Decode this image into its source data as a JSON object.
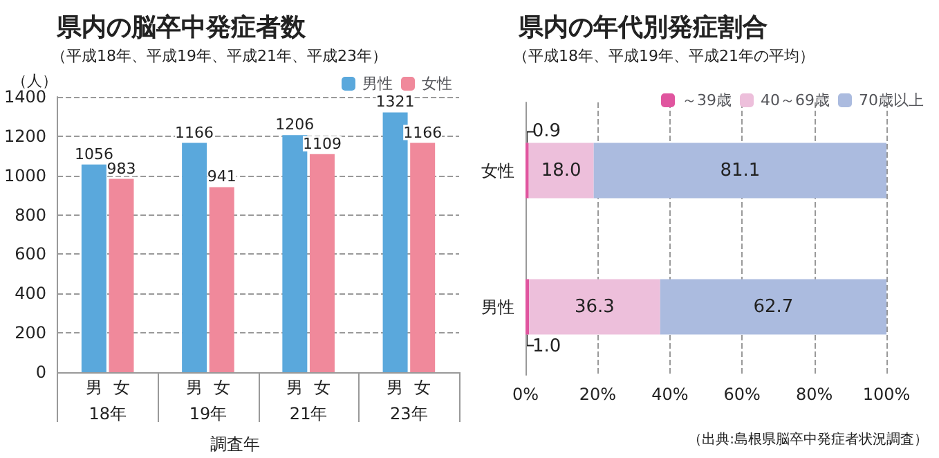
{
  "chart_data": [
    {
      "type": "bar",
      "title": "県内の脳卒中発症者数",
      "subtitle": "（平成18年、平成19年、平成21年、平成23年）",
      "ylabel": "（人）",
      "xlabel": "調査年",
      "categories": [
        "18年",
        "19年",
        "21年",
        "23年"
      ],
      "series": [
        {
          "name": "男性",
          "color": "#5aa8dc",
          "values": [
            1056,
            1166,
            1206,
            1321
          ]
        },
        {
          "name": "女性",
          "color": "#f0899b",
          "values": [
            983,
            941,
            1109,
            1166
          ]
        }
      ],
      "ylim": [
        0,
        1400
      ],
      "yticks": [
        0,
        200,
        400,
        600,
        800,
        1000,
        1200,
        1400
      ],
      "grid": "y",
      "legend": "top right",
      "data_labels": true,
      "annotations": [
        "男",
        "女",
        "男",
        "女",
        "男",
        "女",
        "男",
        "女"
      ]
    },
    {
      "type": "bar",
      "orientation": "horizontal",
      "stacked": true,
      "title": "県内の年代別発症割合",
      "subtitle": "（平成18年、平成19年、平成21年の平均）",
      "categories": [
        "女性",
        "男性"
      ],
      "series": [
        {
          "name": "～39歳",
          "color": "#e0559f",
          "values": [
            0.9,
            1.0
          ],
          "value_labels": [
            "0.9",
            "1.0"
          ]
        },
        {
          "name": "40～69歳",
          "color": "#edbfdb",
          "values": [
            18.0,
            36.3
          ],
          "value_labels": [
            "18.0",
            "36.3"
          ]
        },
        {
          "name": "70歳以上",
          "color": "#abbbdf",
          "values": [
            81.1,
            62.7
          ],
          "value_labels": [
            "81.1",
            "62.7"
          ]
        }
      ],
      "xlim": [
        0,
        100
      ],
      "xticks": [
        {
          "value": 0,
          "label": "0%"
        },
        {
          "value": 20,
          "label": "20%"
        },
        {
          "value": 40,
          "label": "40%"
        },
        {
          "value": 60,
          "label": "60%"
        },
        {
          "value": 80,
          "label": "80%"
        },
        {
          "value": 100,
          "label": "100%"
        }
      ],
      "grid": "x",
      "legend": "top right",
      "annotations": [
        "（出典:島根県脳卒中発症者状況調査）"
      ]
    }
  ]
}
